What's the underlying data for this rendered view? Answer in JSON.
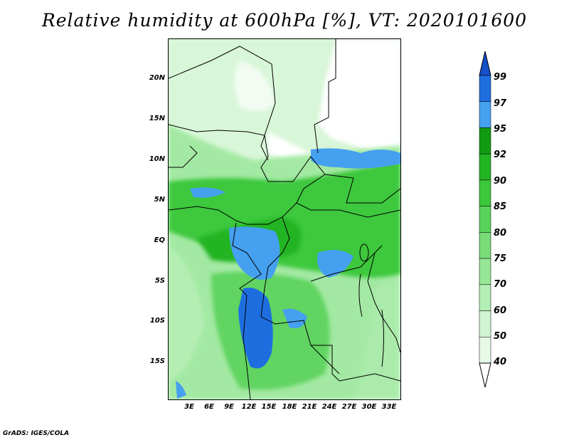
{
  "title": "Relative humidity at 600hPa [%], VT: 2020101600",
  "credit": "GrADS: IGES/COLA",
  "map": {
    "lat_ticks": [
      "20N",
      "15N",
      "10N",
      "5N",
      "EQ",
      "5S",
      "10S",
      "15S"
    ],
    "lon_ticks": [
      "3E",
      "6E",
      "9E",
      "12E",
      "15E",
      "18E",
      "21E",
      "24E",
      "27E",
      "30E",
      "33E"
    ]
  },
  "colorbar": {
    "levels": [
      "40",
      "50",
      "60",
      "70",
      "75",
      "80",
      "85",
      "90",
      "92",
      "95",
      "97",
      "99"
    ],
    "colors": [
      "#ffffff",
      "#e6fae6",
      "#d0f5d0",
      "#b4eeb4",
      "#96e696",
      "#78dc78",
      "#5ad25a",
      "#3cc83c",
      "#22b422",
      "#129b12",
      "#46a0f0",
      "#1e6ee0",
      "#1450c8"
    ]
  }
}
